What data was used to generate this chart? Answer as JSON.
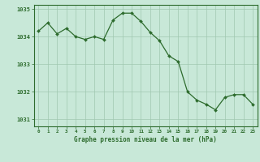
{
  "x": [
    0,
    1,
    2,
    3,
    4,
    5,
    6,
    7,
    8,
    9,
    10,
    11,
    12,
    13,
    14,
    15,
    16,
    17,
    18,
    19,
    20,
    21,
    22,
    23
  ],
  "y": [
    1034.2,
    1034.5,
    1034.1,
    1034.3,
    1034.0,
    1033.9,
    1034.0,
    1033.9,
    1034.6,
    1034.85,
    1034.85,
    1034.55,
    1034.15,
    1033.85,
    1033.3,
    1033.1,
    1032.0,
    1031.7,
    1031.55,
    1031.35,
    1031.8,
    1031.9,
    1031.9,
    1031.55
  ],
  "line_color": "#2d6b2d",
  "marker_color": "#2d6b2d",
  "bg_color": "#c8e8d8",
  "grid_color": "#a0c8b0",
  "axis_color": "#2d6b2d",
  "tick_label_color": "#2d6b2d",
  "xlabel": "Graphe pression niveau de la mer (hPa)",
  "xlabel_color": "#2d6b2d",
  "ylim": [
    1030.75,
    1035.15
  ],
  "yticks": [
    1031,
    1032,
    1033,
    1034,
    1035
  ],
  "xtick_labels": [
    "0",
    "1",
    "2",
    "3",
    "4",
    "5",
    "6",
    "7",
    "8",
    "9",
    "10",
    "11",
    "12",
    "13",
    "14",
    "15",
    "16",
    "17",
    "18",
    "19",
    "20",
    "21",
    "22",
    "23"
  ],
  "xlim": [
    -0.5,
    23.5
  ]
}
